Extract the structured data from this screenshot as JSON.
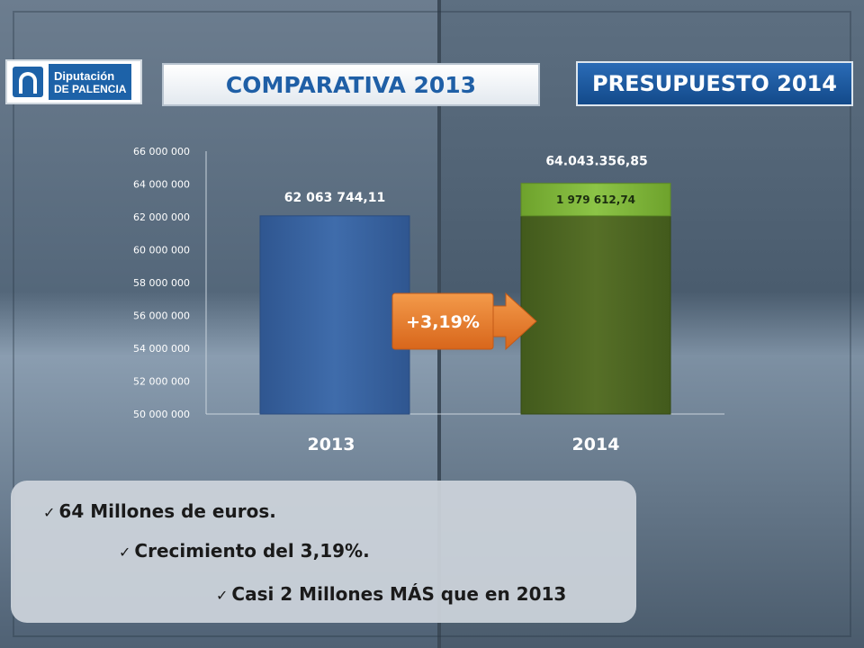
{
  "header": {
    "logo_line1": "Diputación",
    "logo_line2": "DE PALENCIA",
    "title_left": "COMPARATIVA 2013",
    "title_right": "PRESUPUESTO 2014"
  },
  "chart_data": {
    "type": "bar",
    "categories": [
      "2013",
      "2014"
    ],
    "values": [
      62063744.11,
      64043356.85
    ],
    "value_labels": [
      "62 063 744,11",
      "64.043.356,85"
    ],
    "increment": {
      "value": 1979612.74,
      "label": "1 979 612,74"
    },
    "change_label": "+3,19%",
    "ylim": [
      50000000,
      66000000
    ],
    "yticks": [
      50000000,
      52000000,
      54000000,
      56000000,
      58000000,
      60000000,
      62000000,
      64000000,
      66000000
    ],
    "ytick_labels": [
      "50 000 000",
      "52 000 000",
      "54 000 000",
      "56 000 000",
      "58 000 000",
      "60 000 000",
      "62 000 000",
      "64 000 000",
      "66 000 000"
    ],
    "colors": {
      "bar_2013": "#3a65a3",
      "bar_2014": "#4e6524",
      "increment": "#7fb23a",
      "arrow": "#e8792a"
    }
  },
  "bullets": [
    "64 Millones de euros.",
    "Crecimiento del 3,19%.",
    "Casi 2 Millones MÁS que en 2013"
  ],
  "icons": {
    "check": "check-icon"
  }
}
